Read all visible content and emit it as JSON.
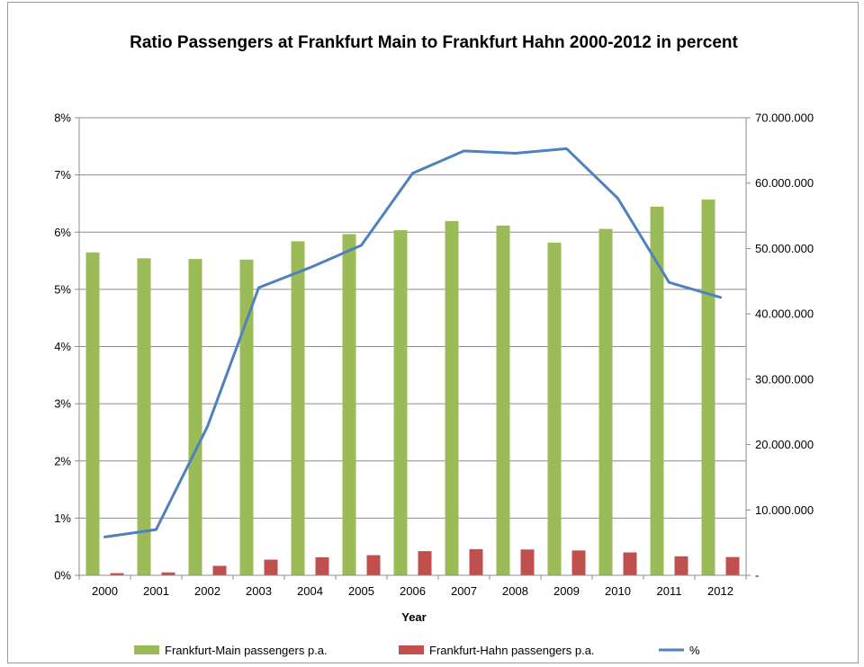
{
  "chart_data": {
    "type": "bar",
    "title": "Ratio Passengers at Frankfurt Main to Frankfurt Hahn 2000-2012 in percent",
    "xlabel": "Year",
    "categories": [
      "2000",
      "2001",
      "2002",
      "2003",
      "2004",
      "2005",
      "2006",
      "2007",
      "2008",
      "2009",
      "2010",
      "2011",
      "2012"
    ],
    "series": [
      {
        "name": "Frankfurt-Main passengers p.a.",
        "type": "bar",
        "axis": "right",
        "color": "#9BBB59",
        "values": [
          49400000,
          48500000,
          48400000,
          48300000,
          51100000,
          52200000,
          52800000,
          54200000,
          53500000,
          50900000,
          53000000,
          56400000,
          57500000
        ]
      },
      {
        "name": "Frankfurt-Hahn passengers p.a.",
        "type": "bar",
        "axis": "right",
        "color": "#C0504D",
        "values": [
          330000,
          440000,
          1450000,
          2400000,
          2750000,
          3080000,
          3700000,
          4000000,
          3950000,
          3800000,
          3500000,
          2900000,
          2800000
        ]
      },
      {
        "name": "%",
        "type": "line",
        "axis": "left",
        "color": "#4F81BD",
        "values": [
          0.67,
          0.8,
          2.6,
          5.03,
          5.38,
          5.77,
          7.03,
          7.42,
          7.38,
          7.46,
          6.59,
          5.12,
          4.86
        ]
      }
    ],
    "y_left": {
      "min": 0,
      "max": 8,
      "step": 1,
      "tick_labels": [
        "0%",
        "1%",
        "2%",
        "3%",
        "4%",
        "5%",
        "6%",
        "7%",
        "8%"
      ]
    },
    "y_right": {
      "min": 0,
      "max": 70000000,
      "step": 10000000,
      "tick_labels": [
        "-",
        "10.000.000",
        "20.000.000",
        "30.000.000",
        "40.000.000",
        "50.000.000",
        "60.000.000",
        "70.000.000"
      ]
    },
    "grid": true,
    "legend_position": "bottom"
  }
}
